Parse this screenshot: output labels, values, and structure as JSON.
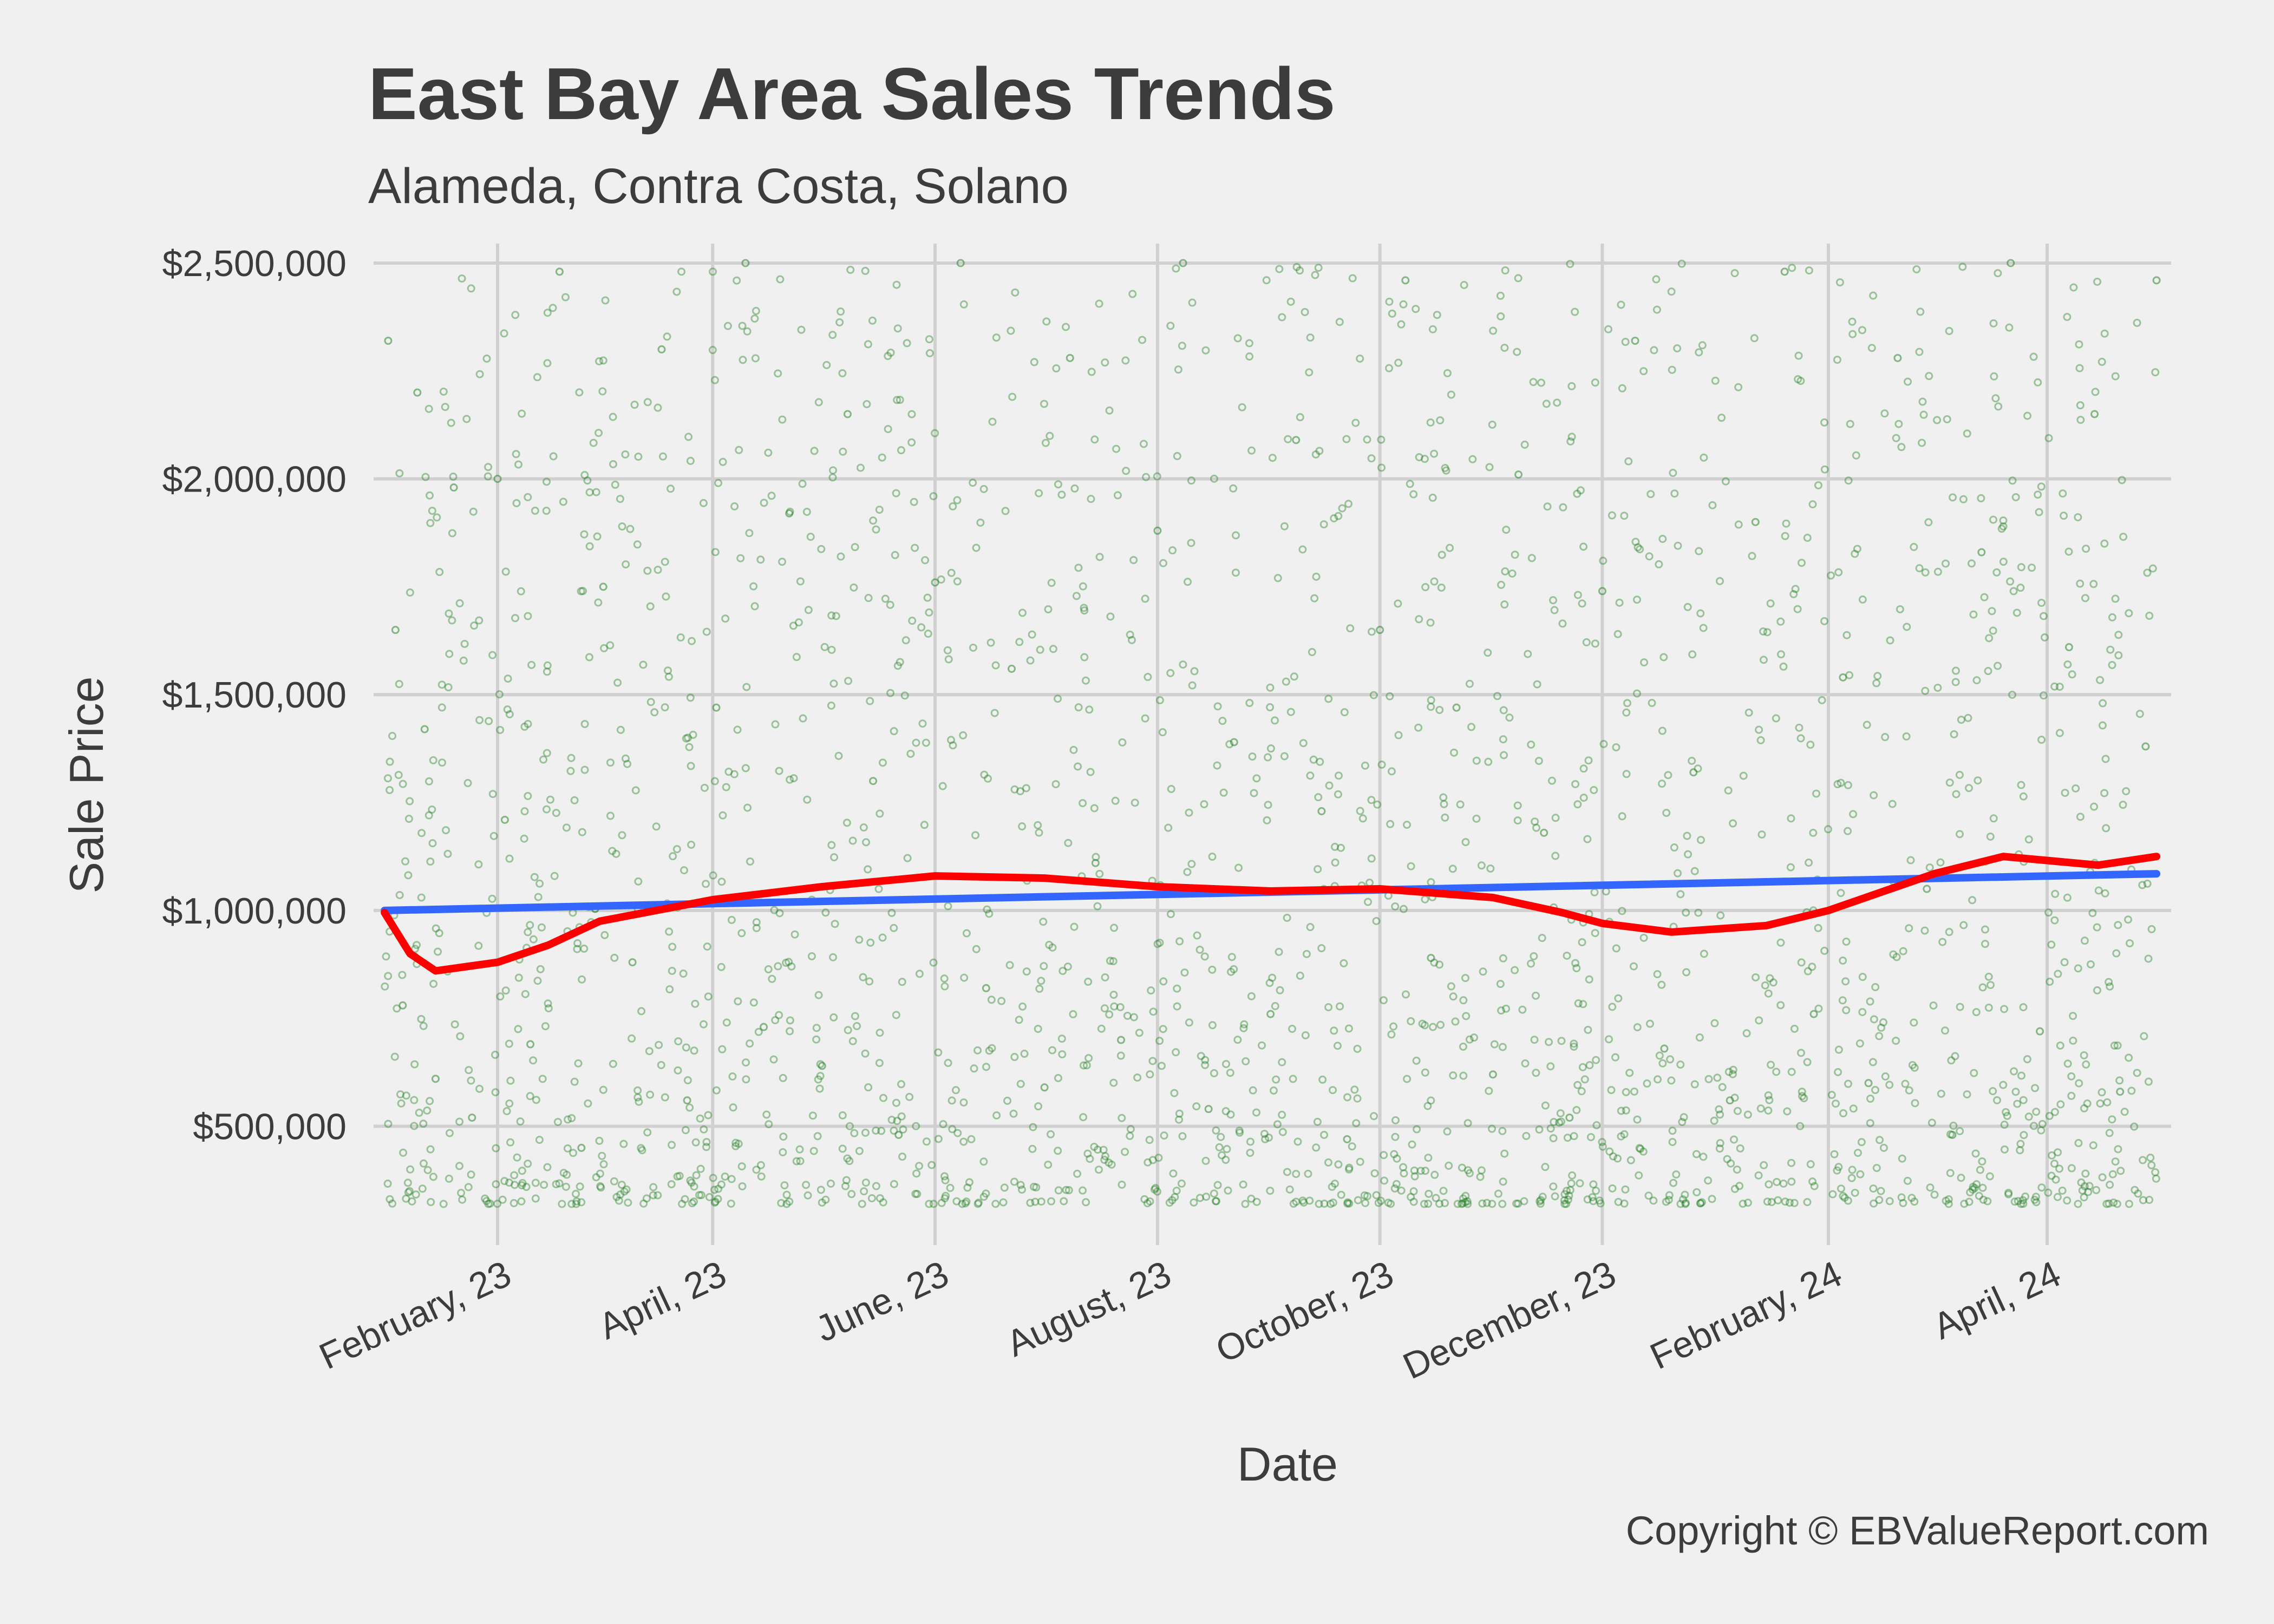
{
  "chart_data": {
    "type": "scatter",
    "title": "East Bay Area Sales Trends",
    "subtitle": "Alameda, Contra Costa, Solano",
    "xlabel": "Date",
    "ylabel": "Sale Price",
    "caption": "Copyright  © EBValueReport.com",
    "xlim": [
      "2022-12-29",
      "2024-05-05"
    ],
    "ylim": [
      300000,
      2520000
    ],
    "grid": true,
    "legend": "none",
    "x_ticks": [
      {
        "date": "2023-02-01",
        "label": "February, 23"
      },
      {
        "date": "2023-04-01",
        "label": "April, 23"
      },
      {
        "date": "2023-06-01",
        "label": "June, 23"
      },
      {
        "date": "2023-08-01",
        "label": "August, 23"
      },
      {
        "date": "2023-10-01",
        "label": "October, 23"
      },
      {
        "date": "2023-12-01",
        "label": "December, 23"
      },
      {
        "date": "2024-02-01",
        "label": "February, 24"
      },
      {
        "date": "2024-04-01",
        "label": "April, 24"
      }
    ],
    "y_ticks": [
      {
        "value": 500000,
        "label": "$500,000"
      },
      {
        "value": 1000000,
        "label": "$1,000,000"
      },
      {
        "value": 1500000,
        "label": "$1,500,000"
      },
      {
        "value": 2000000,
        "label": "$2,000,000"
      },
      {
        "value": 2500000,
        "label": "$2,500,000"
      }
    ],
    "points_color": "#1a7a1a",
    "series": [
      {
        "color": "#3366ff",
        "x": [
          "2023-01-01",
          "2024-05-01"
        ],
        "y": [
          1000000,
          1085000
        ]
      },
      {
        "color": "#ff0000",
        "x": [
          "2023-01-01",
          "2023-01-08",
          "2023-01-15",
          "2023-02-01",
          "2023-02-15",
          "2023-03-01",
          "2023-04-01",
          "2023-05-01",
          "2023-06-01",
          "2023-07-01",
          "2023-08-01",
          "2023-09-01",
          "2023-10-01",
          "2023-11-01",
          "2023-11-20",
          "2023-12-01",
          "2023-12-20",
          "2024-01-15",
          "2024-02-01",
          "2024-03-01",
          "2024-03-20",
          "2024-04-15",
          "2024-05-01"
        ],
        "y": [
          995000,
          900000,
          860000,
          880000,
          920000,
          975000,
          1025000,
          1055000,
          1080000,
          1075000,
          1055000,
          1045000,
          1050000,
          1030000,
          995000,
          970000,
          950000,
          965000,
          1000000,
          1085000,
          1125000,
          1105000,
          1125000
        ]
      }
    ],
    "scatter_points": "raw_points_below",
    "raw_points_below": [
      [
        "2023-01-02",
        2320000
      ],
      [
        "2023-01-04",
        1650000
      ],
      [
        "2023-01-06",
        780000
      ],
      [
        "2023-01-10",
        2200000
      ],
      [
        "2023-01-12",
        1420000
      ],
      [
        "2023-01-15",
        610000
      ],
      [
        "2023-01-20",
        1980000
      ],
      [
        "2023-01-25",
        520000
      ],
      [
        "2023-02-01",
        2000000
      ],
      [
        "2023-02-03",
        1210000
      ],
      [
        "2023-02-10",
        690000
      ],
      [
        "2023-02-18",
        2480000
      ],
      [
        "2023-02-24",
        450000
      ],
      [
        "2023-03-02",
        1750000
      ],
      [
        "2023-03-10",
        880000
      ],
      [
        "2023-03-18",
        2300000
      ],
      [
        "2023-03-25",
        560000
      ],
      [
        "2023-04-02",
        1470000
      ],
      [
        "2023-04-10",
        2500000
      ],
      [
        "2023-04-15",
        730000
      ],
      [
        "2023-04-22",
        1920000
      ],
      [
        "2023-05-01",
        640000
      ],
      [
        "2023-05-08",
        2150000
      ],
      [
        "2023-05-15",
        1300000
      ],
      [
        "2023-05-22",
        480000
      ],
      [
        "2023-06-01",
        1760000
      ],
      [
        "2023-06-08",
        2500000
      ],
      [
        "2023-06-15",
        820000
      ],
      [
        "2023-06-22",
        1560000
      ],
      [
        "2023-07-01",
        590000
      ],
      [
        "2023-07-08",
        2280000
      ],
      [
        "2023-07-15",
        1110000
      ],
      [
        "2023-07-22",
        700000
      ],
      [
        "2023-08-01",
        1880000
      ],
      [
        "2023-08-08",
        2500000
      ],
      [
        "2023-08-15",
        540000
      ],
      [
        "2023-08-22",
        1390000
      ],
      [
        "2023-09-01",
        760000
      ],
      [
        "2023-09-08",
        2090000
      ],
      [
        "2023-09-15",
        1230000
      ],
      [
        "2023-09-22",
        470000
      ],
      [
        "2023-10-01",
        1650000
      ],
      [
        "2023-10-08",
        2460000
      ],
      [
        "2023-10-15",
        890000
      ],
      [
        "2023-10-22",
        1470000
      ],
      [
        "2023-11-01",
        620000
      ],
      [
        "2023-11-08",
        2010000
      ],
      [
        "2023-11-15",
        1180000
      ],
      [
        "2023-11-22",
        520000
      ],
      [
        "2023-12-01",
        1740000
      ],
      [
        "2023-12-10",
        2320000
      ],
      [
        "2023-12-18",
        680000
      ],
      [
        "2023-12-26",
        1320000
      ],
      [
        "2024-01-05",
        560000
      ],
      [
        "2024-01-12",
        1900000
      ],
      [
        "2024-01-20",
        2480000
      ],
      [
        "2024-01-28",
        760000
      ],
      [
        "2024-02-05",
        1540000
      ],
      [
        "2024-02-12",
        600000
      ],
      [
        "2024-02-20",
        2280000
      ],
      [
        "2024-02-28",
        1050000
      ],
      [
        "2024-03-06",
        480000
      ],
      [
        "2024-03-14",
        1830000
      ],
      [
        "2024-03-22",
        2500000
      ],
      [
        "2024-03-30",
        720000
      ],
      [
        "2024-04-07",
        1610000
      ],
      [
        "2024-04-14",
        2150000
      ],
      [
        "2024-04-21",
        580000
      ],
      [
        "2024-04-28",
        1380000
      ],
      [
        "2024-05-01",
        2460000
      ]
    ]
  }
}
